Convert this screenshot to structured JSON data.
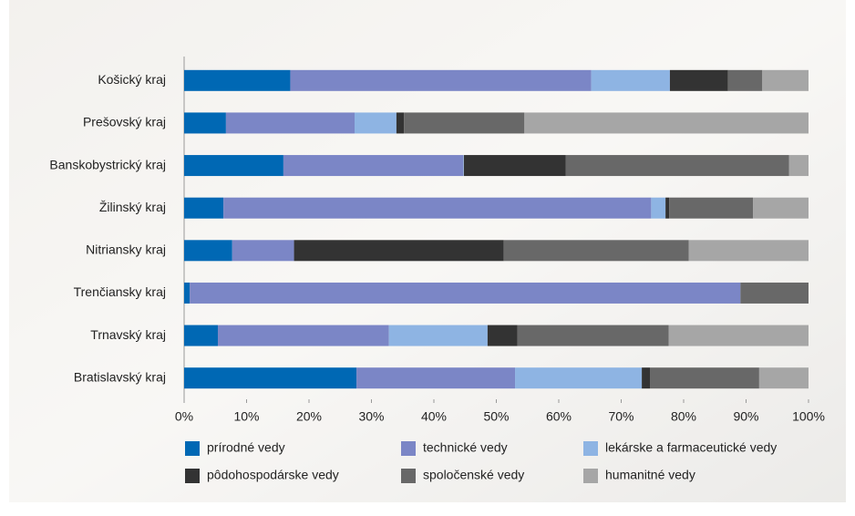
{
  "chart_data": {
    "type": "stacked-bar-horizontal",
    "categories": [
      "Košický kraj",
      "Prešovský kraj",
      "Banskobystrický kraj",
      "Žilinský kraj",
      "Nitriansky kraj",
      "Trenčiansky kraj",
      "Trnavský kraj",
      "Bratislavský kraj"
    ],
    "series": [
      {
        "name": "prírodné vedy",
        "color": "#0068b4",
        "values": [
          17,
          6.7,
          15.9,
          6.3,
          7.7,
          0.9,
          5.4,
          27.6
        ]
      },
      {
        "name": "technické vedy",
        "color": "#7b86c6",
        "values": [
          48.2,
          20.6,
          28.8,
          68.5,
          9.9,
          88.2,
          27.4,
          25.4
        ]
      },
      {
        "name": "lekárske a farmaceutické vedy",
        "color": "#8eb4e3",
        "values": [
          12.6,
          6.7,
          0.1,
          2.3,
          0,
          0,
          15.8,
          20.3
        ]
      },
      {
        "name": "pôdohospodárske vedy",
        "color": "#333333",
        "values": [
          9.3,
          1.2,
          16.3,
          0.6,
          33.6,
          0,
          4.8,
          1.3
        ]
      },
      {
        "name": "spoločenské vedy",
        "color": "#686868",
        "values": [
          5.5,
          19.3,
          35.8,
          13.4,
          29.6,
          10.9,
          24.2,
          17.5
        ]
      },
      {
        "name": "humanitné vedy",
        "color": "#a6a6a6",
        "values": [
          7.4,
          45.5,
          3.1,
          8.9,
          19.2,
          0,
          22.4,
          7.9
        ]
      }
    ],
    "xlim": [
      0,
      100
    ],
    "xticks": [
      {
        "value": 0,
        "label": "0%"
      },
      {
        "value": 10,
        "label": "10%"
      },
      {
        "value": 20,
        "label": "20%"
      },
      {
        "value": 30,
        "label": "30%"
      },
      {
        "value": 40,
        "label": "40%"
      },
      {
        "value": 50,
        "label": "50%"
      },
      {
        "value": 60,
        "label": "60%"
      },
      {
        "value": 70,
        "label": "70%"
      },
      {
        "value": 80,
        "label": "80%"
      },
      {
        "value": 90,
        "label": "90%"
      },
      {
        "value": 100,
        "label": "100%"
      }
    ],
    "grid": false
  }
}
